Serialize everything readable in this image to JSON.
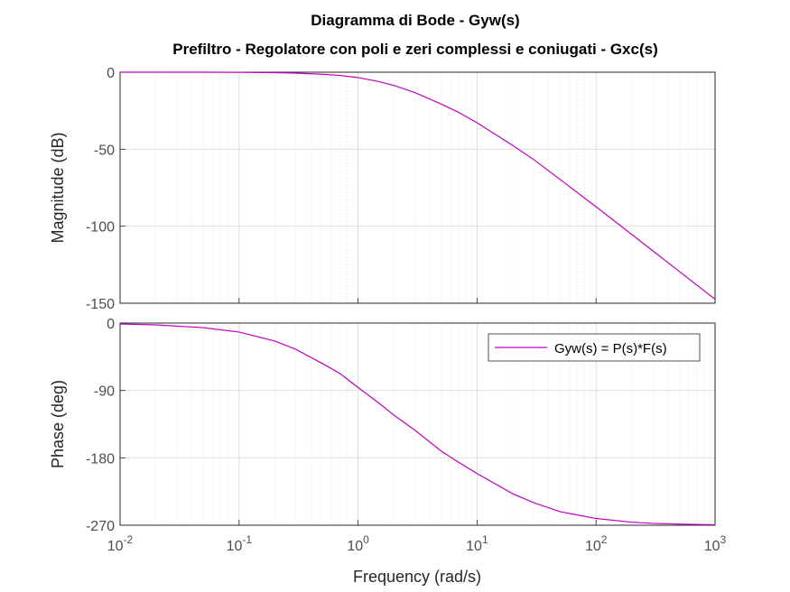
{
  "figure": {
    "title_line1": "Diagramma di Bode - Gyw(s)",
    "title_line2": "Prefiltro - Regolatore con poli e zeri complessi e coniugati - Gxc(s)",
    "xlabel": "Frequency  (rad/s)"
  },
  "colors": {
    "series": "#c000c0",
    "axes": "#262626",
    "grid_major": "#dcdcdc",
    "grid_minor": "#e6e6e6",
    "background": "#ffffff"
  },
  "chart_data": [
    {
      "type": "line",
      "panel": "magnitude",
      "ylabel": "Magnitude (dB)",
      "xscale": "log",
      "xlim": [
        0.01,
        1000
      ],
      "ylim": [
        -150,
        0
      ],
      "yticks": [
        0,
        -50,
        -100,
        -150
      ],
      "grid": true,
      "series": [
        {
          "name": "Gyw(s) = P(s)*F(s)",
          "x": [
            0.01,
            0.02,
            0.05,
            0.1,
            0.2,
            0.3,
            0.5,
            0.7,
            1,
            1.5,
            2,
            3,
            5,
            7,
            10,
            20,
            30,
            50,
            100,
            200,
            300,
            500,
            1000
          ],
          "y": [
            0,
            0,
            -0.02,
            -0.1,
            -0.3,
            -0.6,
            -1.3,
            -2.1,
            -3.5,
            -6.1,
            -8.6,
            -13.2,
            -20.7,
            -26.1,
            -32.8,
            -47.6,
            -56.8,
            -69.7,
            -87.4,
            -105.4,
            -116,
            -129.3,
            -147.4
          ]
        }
      ]
    },
    {
      "type": "line",
      "panel": "phase",
      "ylabel": "Phase (deg)",
      "xscale": "log",
      "xlim": [
        0.01,
        1000
      ],
      "ylim": [
        -270,
        0
      ],
      "yticks": [
        0,
        -90,
        -180,
        -270
      ],
      "xticks": [
        "10-2",
        "10-1",
        "100",
        "101",
        "102",
        "103"
      ],
      "grid": true,
      "legend": "top-right",
      "series": [
        {
          "name": "Gyw(s) = P(s)*F(s)",
          "x": [
            0.01,
            0.02,
            0.05,
            0.1,
            0.2,
            0.3,
            0.5,
            0.7,
            1,
            1.5,
            2,
            3,
            5,
            7,
            10,
            20,
            30,
            50,
            100,
            200,
            300,
            500,
            1000
          ],
          "y": [
            -1.2,
            -2.4,
            -6.1,
            -12,
            -24,
            -35,
            -54,
            -67,
            -86,
            -107,
            -123,
            -143,
            -171,
            -186,
            -201,
            -228,
            -240,
            -252,
            -261,
            -266,
            -267.5,
            -268.5,
            -269.3
          ]
        }
      ]
    }
  ]
}
